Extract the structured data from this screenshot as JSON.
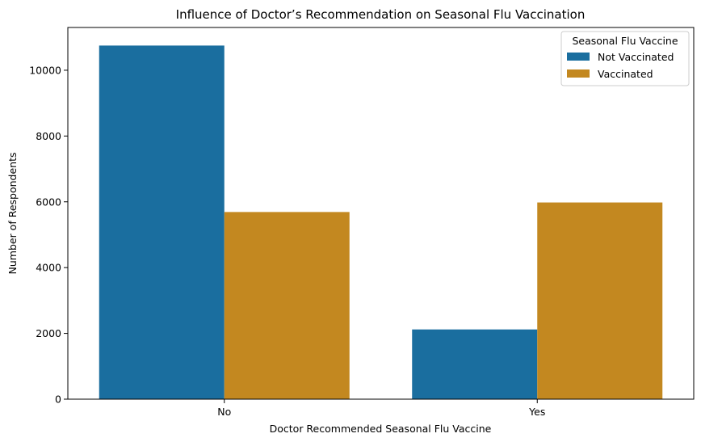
{
  "chart_data": {
    "type": "bar",
    "title": "Influence of Doctor’s Recommendation on Seasonal Flu Vaccination",
    "xlabel": "Doctor Recommended Seasonal Flu Vaccine",
    "ylabel": "Number of Respondents",
    "categories": [
      "No",
      "Yes"
    ],
    "series": [
      {
        "name": "Not Vaccinated",
        "color": "#1a6e9f",
        "values": [
          10750,
          2120
        ]
      },
      {
        "name": "Vaccinated",
        "color": "#c38820",
        "values": [
          5690,
          5980
        ]
      }
    ],
    "ylim": [
      0,
      11300
    ],
    "yticks": [
      0,
      2000,
      4000,
      6000,
      8000,
      10000
    ],
    "legend": {
      "title": "Seasonal Flu Vaccine",
      "placement": "top-right"
    },
    "grid": false
  }
}
